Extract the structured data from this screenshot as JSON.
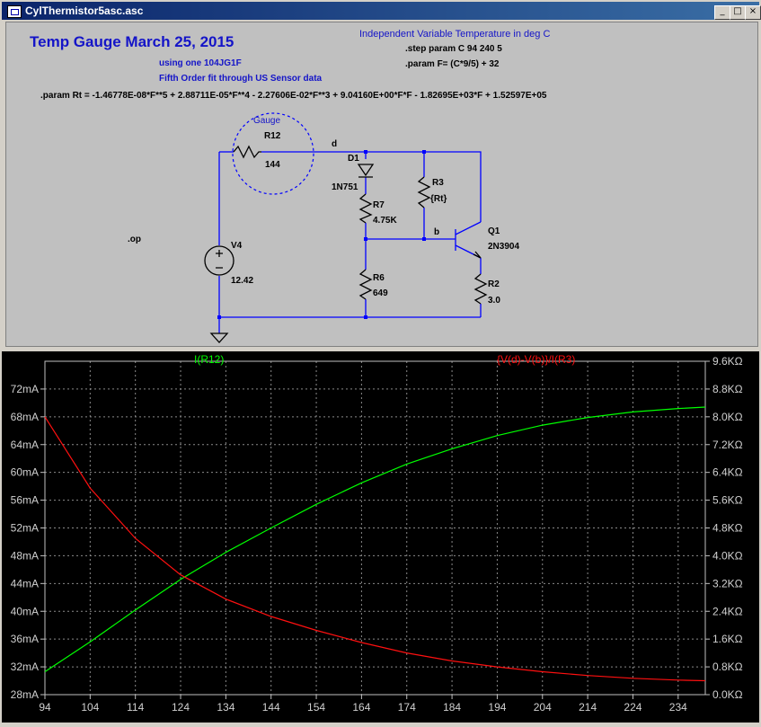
{
  "window": {
    "title": "CylThermistor5asc.asc",
    "minimize_label": "_",
    "maximize_label": "□",
    "close_label": "×"
  },
  "schematic": {
    "heading": "Temp Gauge March 25, 2015",
    "using": "using one 104JG1F",
    "fit": "Fifth Order fit through US Sensor data",
    "indep": "Independent Variable Temperature in deg C",
    "step": ".step param C 94 240 5",
    "param_f": ".param F= (C*9/5) + 32",
    "param_rt": ".param Rt  = -1.46778E-08*F**5 + 2.88711E-05*F**4 - 2.27606E-02*F**3 + 9.04160E+00*F*F - 1.82695E+03*F + 1.52597E+05",
    "op": ".op",
    "gauge": "Gauge",
    "net_d": "d",
    "net_b": "b",
    "components": {
      "r12": {
        "name": "R12",
        "value": "144"
      },
      "d1": {
        "name": "D1",
        "value": "1N751"
      },
      "r3": {
        "name": "R3",
        "value": "{Rt}"
      },
      "r7": {
        "name": "R7",
        "value": "4.75K"
      },
      "q1": {
        "name": "Q1",
        "value": "2N3904"
      },
      "v4": {
        "name": "V4",
        "value": "12.42"
      },
      "r6": {
        "name": "R6",
        "value": "649"
      },
      "r2": {
        "name": "R2",
        "value": "3.0"
      }
    }
  },
  "colors": {
    "green": "#00ff00",
    "red": "#ff1010",
    "wire": "#0000ff",
    "label_blue": "#1414c8"
  },
  "chart_data": {
    "type": "line",
    "legend": [
      "I(R12)",
      "{V(d)-V(b)}/I(R3)"
    ],
    "x_ticks": [
      "94",
      "104",
      "114",
      "124",
      "134",
      "144",
      "154",
      "164",
      "174",
      "184",
      "194",
      "204",
      "214",
      "224",
      "234"
    ],
    "xlim": [
      94,
      240
    ],
    "left_axis": {
      "ticks": [
        "28mA",
        "32mA",
        "36mA",
        "40mA",
        "44mA",
        "48mA",
        "52mA",
        "56mA",
        "60mA",
        "64mA",
        "68mA",
        "72mA"
      ],
      "ylim": [
        28,
        76
      ]
    },
    "right_axis": {
      "ticks": [
        "0.0KΩ",
        "0.8KΩ",
        "1.6KΩ",
        "2.4KΩ",
        "3.2KΩ",
        "4.0KΩ",
        "4.8KΩ",
        "5.6KΩ",
        "6.4KΩ",
        "7.2KΩ",
        "8.0KΩ",
        "8.8KΩ",
        "9.6KΩ"
      ],
      "ylim": [
        0,
        9.6
      ]
    },
    "grid": true,
    "series": [
      {
        "name": "I(R12)",
        "axis": "left",
        "x": [
          94,
          104,
          114,
          124,
          134,
          144,
          154,
          164,
          174,
          184,
          194,
          204,
          214,
          224,
          234,
          240
        ],
        "y": [
          31.3,
          35.6,
          40.2,
          44.6,
          48.5,
          52.0,
          55.4,
          58.5,
          61.2,
          63.4,
          65.3,
          66.8,
          67.9,
          68.7,
          69.2,
          69.4
        ]
      },
      {
        "name": "{V(d)-V(b)}/I(R3)",
        "axis": "right",
        "x": [
          94,
          104,
          114,
          124,
          134,
          144,
          154,
          164,
          174,
          184,
          194,
          204,
          214,
          224,
          234,
          240
        ],
        "y": [
          8.0,
          5.95,
          4.5,
          3.45,
          2.75,
          2.25,
          1.85,
          1.5,
          1.2,
          0.97,
          0.8,
          0.66,
          0.55,
          0.47,
          0.42,
          0.4
        ]
      }
    ]
  }
}
